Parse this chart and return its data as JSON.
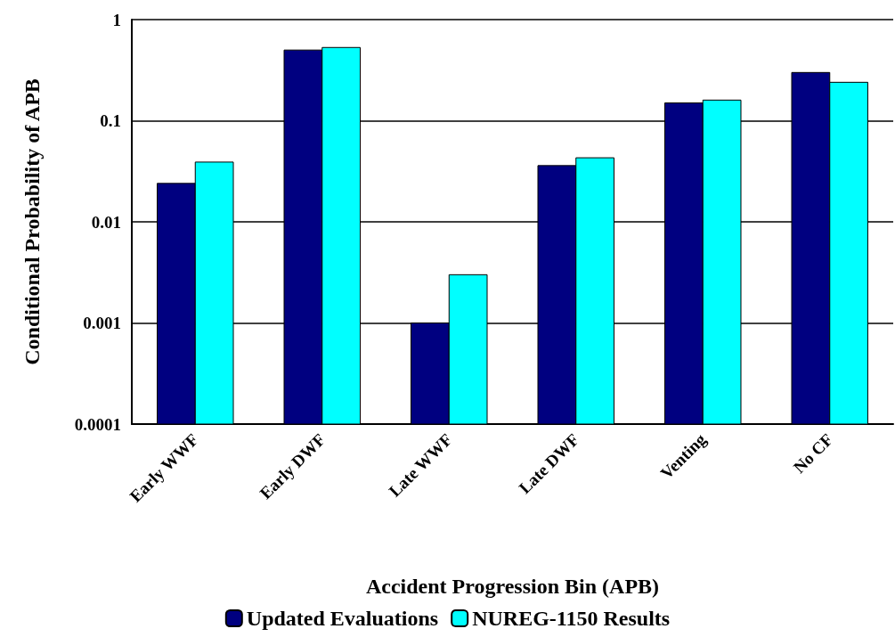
{
  "chart_data": {
    "type": "bar",
    "xlabel": "Accident Progression Bin (APB)",
    "ylabel": "Conditional Probability of APB",
    "categories": [
      "Early WWF",
      "Early DWF",
      "Late WWF",
      "Late DWF",
      "Venting",
      "No CF"
    ],
    "series": [
      {
        "name": "Updated Evaluations",
        "color": "#000080",
        "values": [
          0.024,
          0.5,
          0.001,
          0.036,
          0.15,
          0.3
        ]
      },
      {
        "name": "NUREG-1150 Results",
        "color": "#00ffff",
        "values": [
          0.039,
          0.53,
          0.003,
          0.043,
          0.16,
          0.24
        ]
      }
    ],
    "log": true,
    "ylim": [
      0.0001,
      1
    ],
    "yticks": [
      0.0001,
      0.001,
      0.01,
      0.1,
      1
    ],
    "grid": "y",
    "legend": "bottom"
  }
}
